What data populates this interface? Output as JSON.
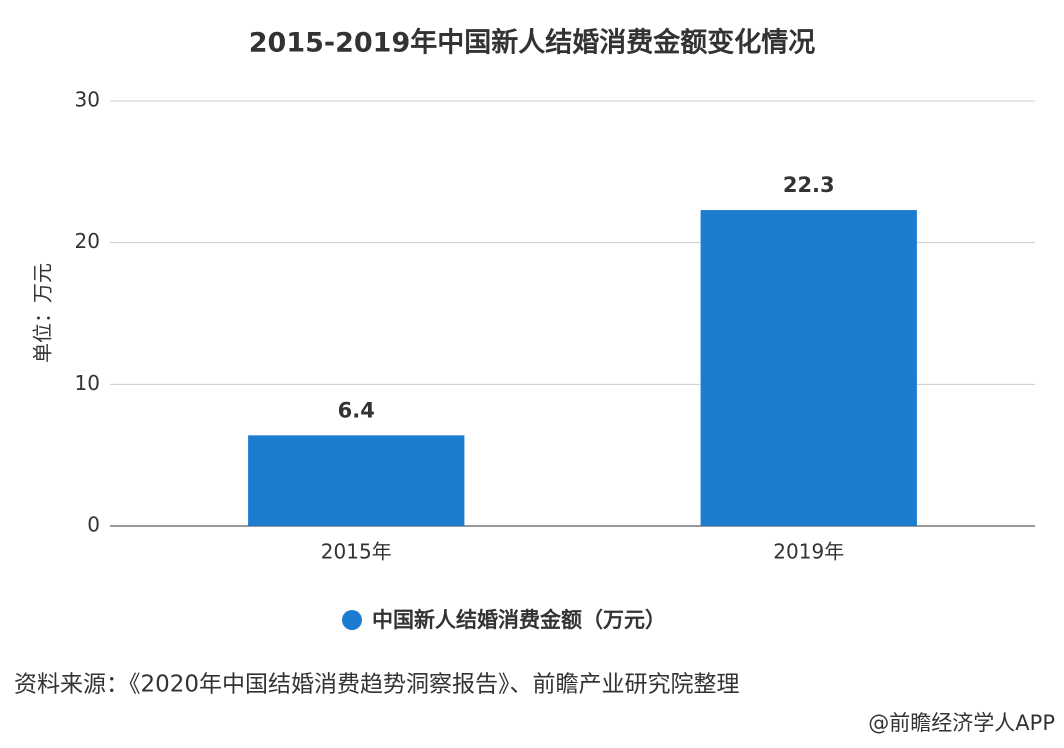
{
  "chart_data": {
    "type": "bar",
    "title": "2015-2019年中国新人结婚消费金额变化情况",
    "y_label": "单位：万元",
    "categories": [
      "2015年",
      "2019年"
    ],
    "series": [
      {
        "name": "中国新人结婚消费金额（万元）",
        "color": "#1c7ccf",
        "values": [
          6.4,
          22.3
        ]
      }
    ],
    "ylim": [
      0,
      30
    ],
    "yticks": [
      0,
      10,
      20,
      30
    ],
    "grid": true,
    "source": "资料来源：《2020年中国结婚消费趋势洞察报告》、前瞻产业研究院整理",
    "credit": "@前瞻经济学人APP"
  }
}
